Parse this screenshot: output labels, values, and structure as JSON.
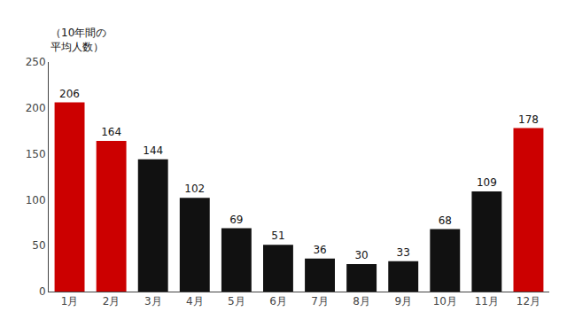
{
  "chart_data": {
    "type": "bar",
    "ylabel": "（10年間の\n平均人数）",
    "categories": [
      "1月",
      "2月",
      "3月",
      "4月",
      "5月",
      "6月",
      "7月",
      "8月",
      "9月",
      "10月",
      "11月",
      "12月"
    ],
    "values": [
      206,
      164,
      144,
      102,
      69,
      51,
      36,
      30,
      33,
      68,
      109,
      178
    ],
    "colors": [
      "#cc0000",
      "#cc0000",
      "#111111",
      "#111111",
      "#111111",
      "#111111",
      "#111111",
      "#111111",
      "#111111",
      "#111111",
      "#111111",
      "#cc0000"
    ],
    "ylim": [
      0,
      250
    ],
    "yticks": [
      0,
      50,
      100,
      150,
      200,
      250
    ],
    "grid": false,
    "data_labels": true
  }
}
